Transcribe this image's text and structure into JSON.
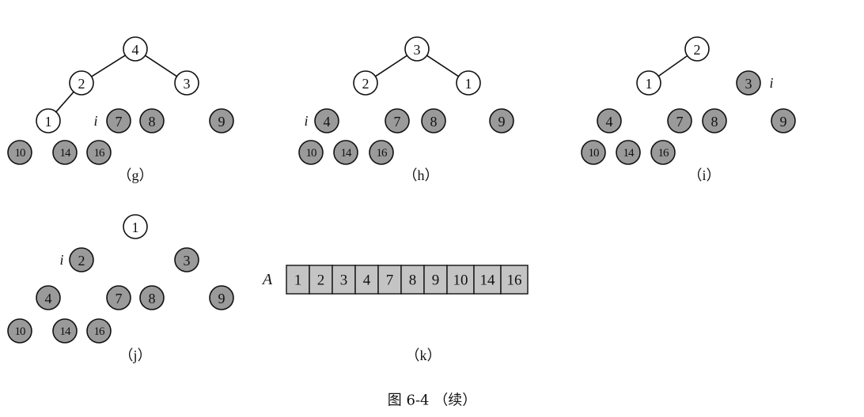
{
  "panels": [
    {
      "id": "g",
      "label": "（g）",
      "marker": "i",
      "nodes": [
        {
          "value": "4",
          "gray": false
        },
        {
          "value": "2",
          "gray": false
        },
        {
          "value": "3",
          "gray": false
        },
        {
          "value": "1",
          "gray": false
        },
        {
          "value": "7",
          "gray": true
        },
        {
          "value": "8",
          "gray": true
        },
        {
          "value": "9",
          "gray": true
        },
        {
          "value": "10",
          "gray": true
        },
        {
          "value": "14",
          "gray": true
        },
        {
          "value": "16",
          "gray": true
        }
      ],
      "edges": [
        [
          0,
          1
        ],
        [
          0,
          2
        ],
        [
          1,
          3
        ]
      ]
    },
    {
      "id": "h",
      "label": "（h）",
      "marker": "i",
      "nodes": [
        {
          "value": "3",
          "gray": false
        },
        {
          "value": "2",
          "gray": false
        },
        {
          "value": "1",
          "gray": false
        },
        {
          "value": "4",
          "gray": true
        },
        {
          "value": "7",
          "gray": true
        },
        {
          "value": "8",
          "gray": true
        },
        {
          "value": "9",
          "gray": true
        },
        {
          "value": "10",
          "gray": true
        },
        {
          "value": "14",
          "gray": true
        },
        {
          "value": "16",
          "gray": true
        }
      ],
      "edges": [
        [
          0,
          1
        ],
        [
          0,
          2
        ]
      ]
    },
    {
      "id": "i",
      "label": "（i）",
      "marker": "i",
      "nodes": [
        {
          "value": "2",
          "gray": false
        },
        {
          "value": "1",
          "gray": false
        },
        {
          "value": "3",
          "gray": true
        },
        {
          "value": "4",
          "gray": true
        },
        {
          "value": "7",
          "gray": true
        },
        {
          "value": "8",
          "gray": true
        },
        {
          "value": "9",
          "gray": true
        },
        {
          "value": "10",
          "gray": true
        },
        {
          "value": "14",
          "gray": true
        },
        {
          "value": "16",
          "gray": true
        }
      ],
      "edges": [
        [
          0,
          1
        ]
      ]
    },
    {
      "id": "j",
      "label": "（j）",
      "marker": "i",
      "nodes": [
        {
          "value": "1",
          "gray": false
        },
        {
          "value": "2",
          "gray": true
        },
        {
          "value": "3",
          "gray": true
        },
        {
          "value": "4",
          "gray": true
        },
        {
          "value": "7",
          "gray": true
        },
        {
          "value": "8",
          "gray": true
        },
        {
          "value": "9",
          "gray": true
        },
        {
          "value": "10",
          "gray": true
        },
        {
          "value": "14",
          "gray": true
        },
        {
          "value": "16",
          "gray": true
        }
      ],
      "edges": []
    }
  ],
  "array": {
    "label": "（k）",
    "name": "A",
    "values": [
      "1",
      "2",
      "3",
      "4",
      "7",
      "8",
      "9",
      "10",
      "14",
      "16"
    ]
  },
  "caption": "图 6-4 （续）"
}
